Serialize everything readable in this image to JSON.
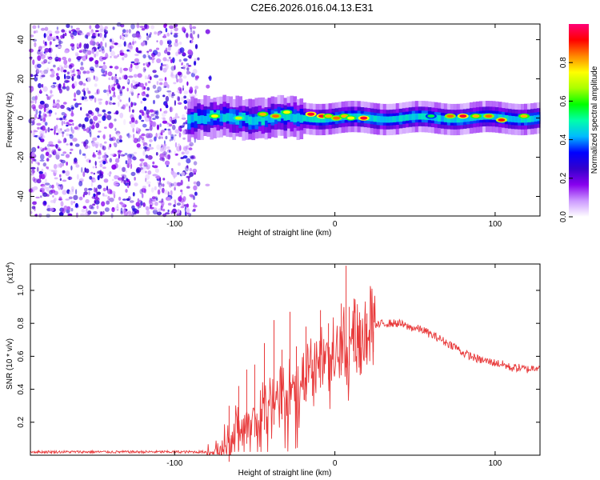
{
  "chart_data": [
    {
      "type": "heatmap",
      "title": "C2E6.2026.016.04.13.E31",
      "xlabel": "Height of straight line (km)",
      "ylabel": "Frequency (Hz)",
      "xlim": [
        -190,
        128
      ],
      "ylim": [
        -50,
        48
      ],
      "xticks": [
        -100,
        0,
        100
      ],
      "yticks": [
        -40,
        -20,
        0,
        20,
        40
      ],
      "colorbar": {
        "label": "Normalized spectral amplitude",
        "range": [
          0,
          1
        ],
        "ticks": [
          "0.0",
          "0.2",
          "0.4",
          "0.6",
          "0.8"
        ],
        "tick_values": [
          0.0,
          0.2,
          0.4,
          0.6,
          0.8
        ],
        "colormap": [
          "#ffffff",
          "#cc99ff",
          "#8800ee",
          "#3300cc",
          "#0000ff",
          "#00bbff",
          "#00ffaa",
          "#00ff00",
          "#aaff00",
          "#ffff00",
          "#ff8800",
          "#ff0000",
          "#ff0077"
        ]
      },
      "regions": [
        {
          "name": "noise",
          "x_range": [
            -190,
            -76
          ],
          "freq_range": [
            -50,
            48
          ],
          "level": 0.15
        },
        {
          "name": "signal-band",
          "x_range": [
            -92,
            128
          ],
          "center_freq": 0,
          "halfwidth_hz": 3,
          "level": 0.4
        },
        {
          "name": "hot-spots",
          "x": [
            -75,
            -60,
            -45,
            -37,
            -30,
            -15,
            -8,
            -4,
            1,
            6,
            10,
            18,
            60,
            72,
            80,
            88,
            96,
            104,
            118
          ],
          "freq": [
            1,
            0,
            2,
            1,
            3,
            2,
            1,
            1,
            0,
            1,
            0,
            0,
            1,
            1,
            1,
            1,
            1,
            -1,
            1
          ],
          "level": [
            0.75,
            0.7,
            0.8,
            0.85,
            0.75,
            0.95,
            0.95,
            0.8,
            0.85,
            0.8,
            0.75,
            0.95,
            0.55,
            0.85,
            0.95,
            0.8,
            0.85,
            0.9,
            0.8
          ]
        }
      ]
    },
    {
      "type": "line",
      "ylabel": "SNR (10 * v/v)",
      "xlabel": "Height of straight line (km)",
      "y_multiplier": "(x10",
      "y_multiplier_exp": "4",
      "y_multiplier_close": ")",
      "xlim": [
        -190,
        128
      ],
      "ylim": [
        0,
        1.16
      ],
      "xticks": [
        -100,
        0,
        100
      ],
      "yticks": [
        0.2,
        0.4,
        0.6,
        0.8,
        1.0
      ],
      "ytick_labels": [
        "0.2",
        "0.4",
        "0.6",
        "0.8",
        "1.0"
      ],
      "color": "#e8393a",
      "series": [
        {
          "name": "SNR",
          "x": [
            -190,
            -150,
            -110,
            -90,
            -80,
            -75,
            -70,
            -65,
            -60,
            -55,
            -50,
            -45,
            -40,
            -35,
            -30,
            -25,
            -20,
            -15,
            -10,
            -5,
            0,
            5,
            10,
            15,
            20,
            25,
            30,
            35,
            40,
            45,
            50,
            55,
            60,
            65,
            70,
            75,
            80,
            85,
            90,
            95,
            100,
            105,
            110,
            115,
            120,
            128
          ],
          "y": [
            0.02,
            0.02,
            0.02,
            0.02,
            0.02,
            0.04,
            0.07,
            0.12,
            0.18,
            0.22,
            0.26,
            0.3,
            0.32,
            0.36,
            0.38,
            0.42,
            0.46,
            0.5,
            0.55,
            0.6,
            0.64,
            0.67,
            0.7,
            0.74,
            0.76,
            0.78,
            0.8,
            0.8,
            0.8,
            0.78,
            0.77,
            0.76,
            0.73,
            0.71,
            0.68,
            0.66,
            0.62,
            0.6,
            0.58,
            0.57,
            0.56,
            0.55,
            0.53,
            0.53,
            0.52,
            0.54
          ]
        }
      ],
      "spikes": {
        "x": [
          -66,
          -60,
          -55,
          -50,
          -44,
          -38,
          -33,
          -28,
          -24,
          -18,
          -14,
          -9,
          -4,
          4,
          7,
          9,
          12,
          16,
          20,
          24
        ],
        "y": [
          0.3,
          0.42,
          0.52,
          0.55,
          0.68,
          0.82,
          0.64,
          0.87,
          0.66,
          0.78,
          0.58,
          0.88,
          0.8,
          0.92,
          1.15,
          0.9,
          0.95,
          0.82,
          0.86,
          0.75
        ]
      }
    }
  ]
}
